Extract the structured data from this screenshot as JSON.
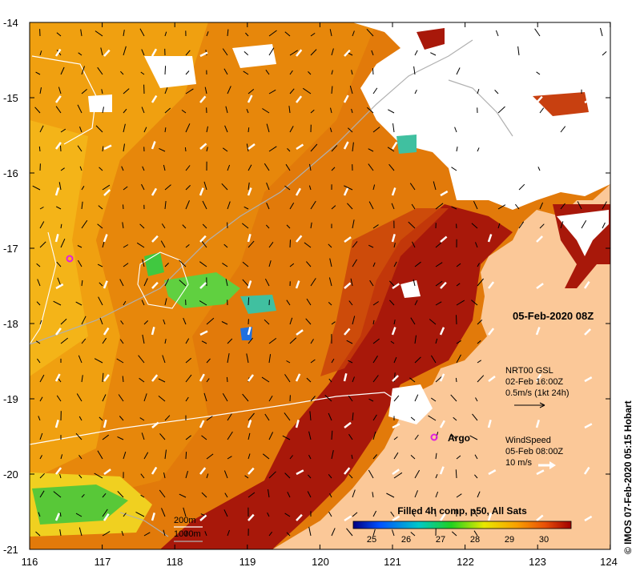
{
  "map": {
    "lat_ticks": [
      "-14",
      "-15",
      "-16",
      "-17",
      "-18",
      "-19",
      "-20",
      "-21"
    ],
    "lon_ticks": [
      "116",
      "117",
      "118",
      "119",
      "120",
      "121",
      "122",
      "123",
      "124"
    ],
    "date_label": "05-Feb-2020 08Z",
    "argo_label": "Argo",
    "colors": {
      "land": "#fbc898",
      "hot": "#a41406",
      "warm": "#df6a08",
      "mid": "#f19a0c",
      "cool": "#f8c01c",
      "cloud": "#ffffff",
      "argo": "#e020e0"
    }
  },
  "legend": {
    "current": {
      "line1": "NRT00 GSL",
      "line2": "02-Feb 16:00Z",
      "line3": "0.5m/s (1kt 24h)"
    },
    "wind": {
      "line1": "WindSpeed",
      "line2": "05-Feb 08:00Z",
      "line3": "10 m/s"
    }
  },
  "colorbar": {
    "title": "Filled 4h comp, p50, All Sats",
    "ticks": [
      "25",
      "26",
      "27",
      "28",
      "29",
      "30"
    ],
    "colors": [
      "#000080",
      "#0050ff",
      "#00c8c8",
      "#20d020",
      "#e8e800",
      "#f8a000",
      "#e85008",
      "#a00000"
    ]
  },
  "depth_contours": {
    "shallow": "200m",
    "deep": "1000m"
  },
  "credit": "© IMOS 07-Feb-2020 05:15 Hobart"
}
